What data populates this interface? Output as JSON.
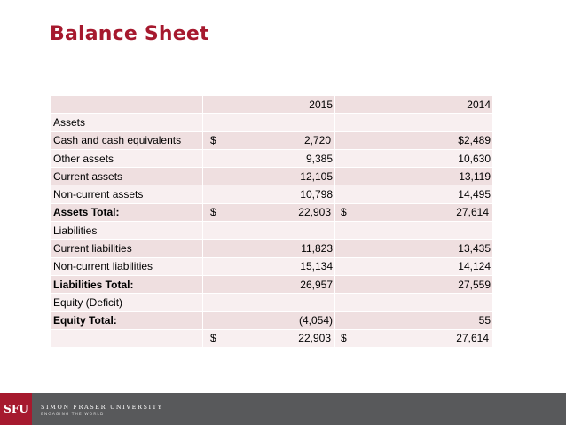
{
  "title": "Balance Sheet",
  "table": {
    "header": [
      "",
      "2015",
      "2014"
    ],
    "rows": [
      {
        "label": "Assets",
        "v2015": "",
        "v2014": ""
      },
      {
        "label": "Cash and cash equivalents",
        "v2015": "2,720",
        "v2014": "$2,489"
      },
      {
        "label": "Other assets",
        "v2015": "9,385",
        "v2014": "10,630"
      },
      {
        "label": "Current assets",
        "v2015": "12,105",
        "v2014": "13,119"
      },
      {
        "label": "Non-current assets",
        "v2015": "10,798",
        "v2014": "14,495"
      },
      {
        "label": "Assets Total:",
        "v2015": "22,903",
        "v2014": "27,614"
      },
      {
        "label": "Liabilities",
        "v2015": "",
        "v2014": ""
      },
      {
        "label": "Current liabilities",
        "v2015": "11,823",
        "v2014": "13,435"
      },
      {
        "label": "Non-current liabilities",
        "v2015": "15,134",
        "v2014": "14,124"
      },
      {
        "label": "Liabilities Total:",
        "v2015": "26,957",
        "v2014": "27,559"
      },
      {
        "label": "Equity (Deficit)",
        "v2015": "",
        "v2014": ""
      },
      {
        "label": "Equity Total:",
        "v2015": "(4,054)",
        "v2014": "55"
      },
      {
        "label": "",
        "v2015": "22,903",
        "v2014": "27,614"
      }
    ],
    "currency_symbol": "$"
  },
  "footer": {
    "logo_text": "SFU",
    "university": "SIMON FRASER UNIVERSITY",
    "tagline": "ENGAGING THE WORLD"
  },
  "colors": {
    "title": "#a6192e",
    "row_dark": "#efdfe0",
    "row_light": "#f8eff0",
    "footer_bg": "#58595b",
    "logo_bg": "#a6192e"
  }
}
